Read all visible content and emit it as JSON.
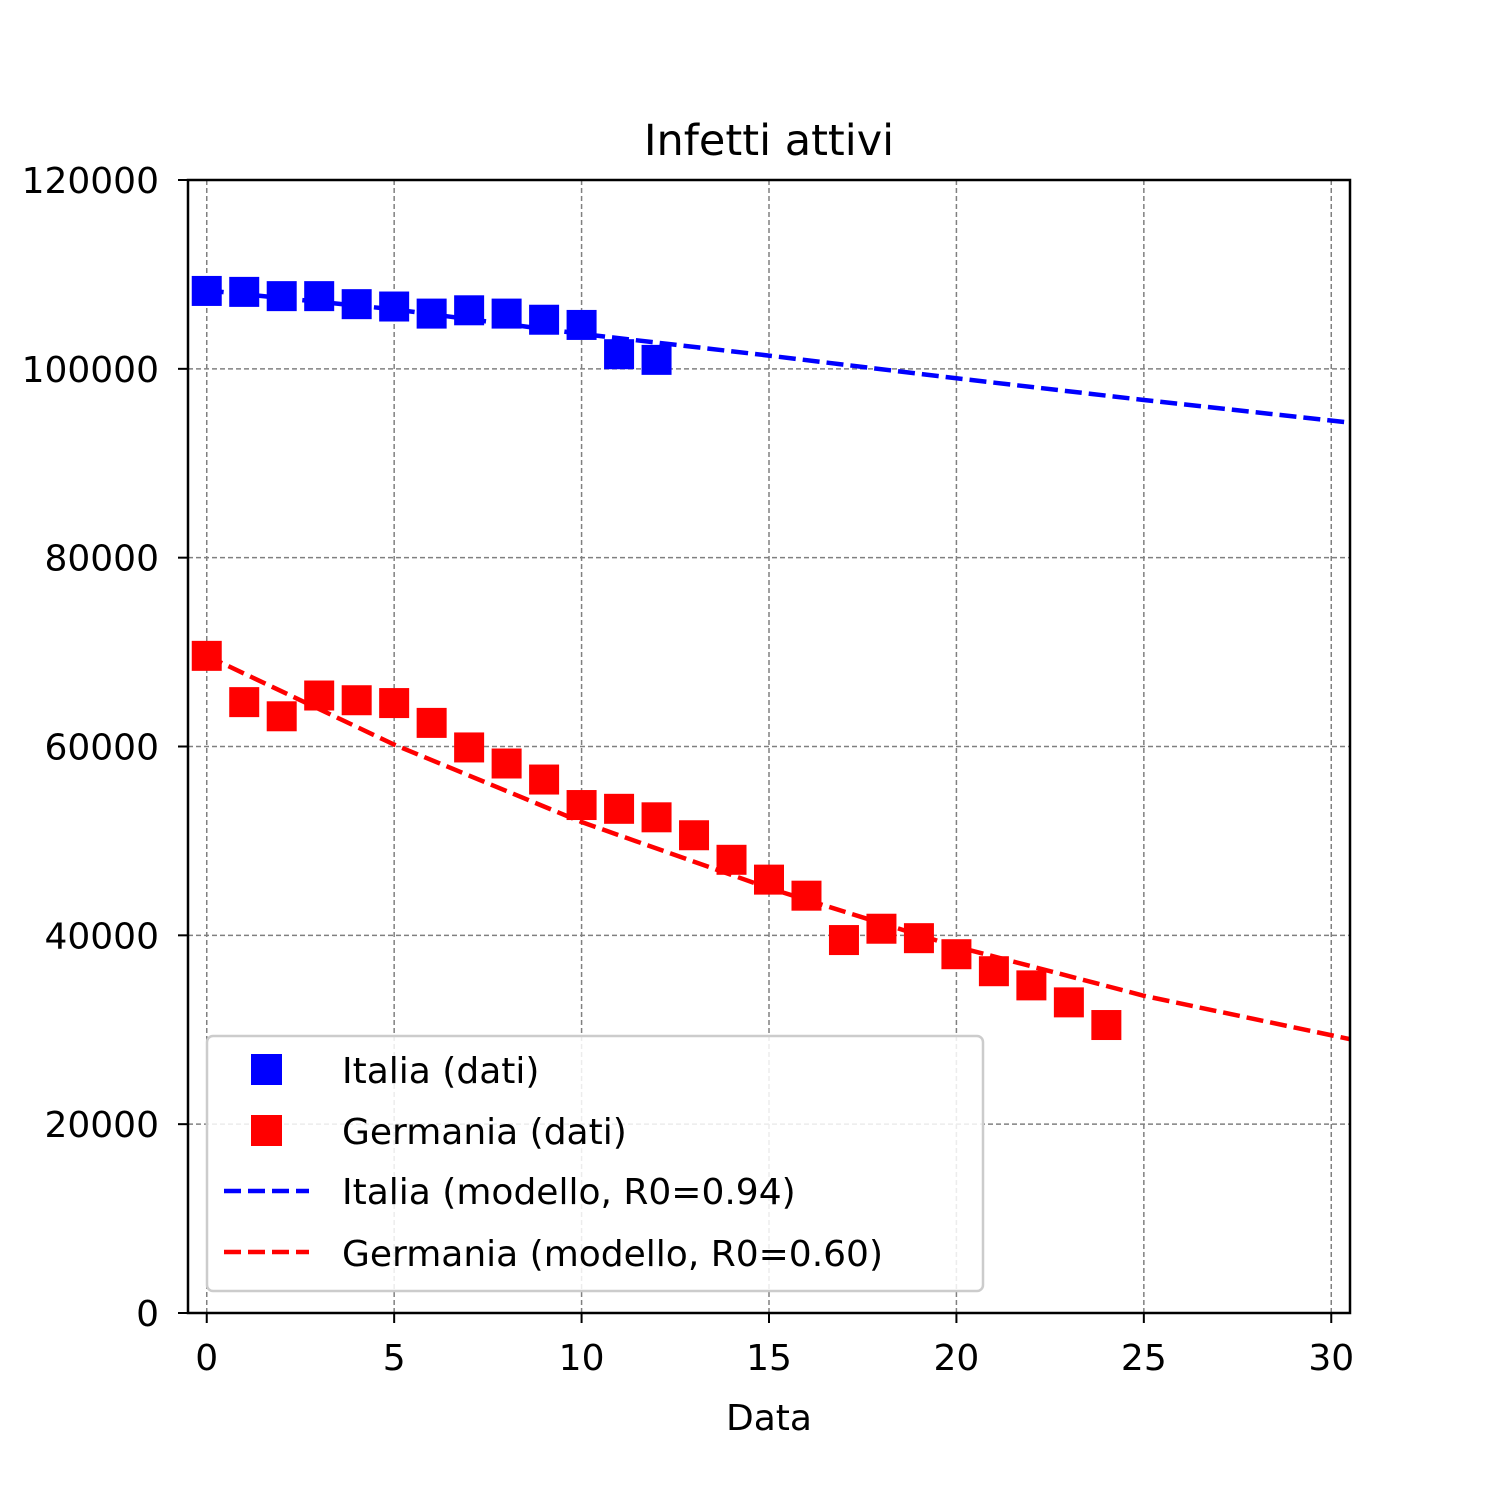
{
  "chart_data": {
    "type": "scatter",
    "title": "Infetti attivi",
    "xlabel": "Data",
    "ylabel": "",
    "xlim": [
      -0.5,
      30.5
    ],
    "ylim": [
      0,
      120000
    ],
    "xticks": [
      0,
      5,
      10,
      15,
      20,
      25,
      30
    ],
    "yticks": [
      0,
      20000,
      40000,
      60000,
      80000,
      100000,
      120000
    ],
    "xtick_labels": [
      "0",
      "5",
      "10",
      "15",
      "20",
      "25",
      "30"
    ],
    "ytick_labels": [
      "0",
      "20000",
      "40000",
      "60000",
      "80000",
      "100000",
      "120000"
    ],
    "grid": true,
    "legend_position": "lower-left",
    "series": [
      {
        "name": "Italia (dati)",
        "kind": "markers",
        "marker": "square",
        "color": "#0000ff",
        "x": [
          0,
          1,
          2,
          3,
          4,
          5,
          6,
          7,
          8,
          9,
          10,
          11,
          12
        ],
        "y": [
          108250,
          108150,
          107700,
          107700,
          106850,
          106600,
          105850,
          106200,
          105850,
          105200,
          104650,
          101550,
          100950
        ]
      },
      {
        "name": "Germania (dati)",
        "kind": "markers",
        "marker": "square",
        "color": "#ff0000",
        "x": [
          0,
          1,
          2,
          3,
          4,
          5,
          6,
          7,
          8,
          9,
          10,
          11,
          12,
          13,
          14,
          15,
          16,
          17,
          18,
          19,
          20,
          21,
          22,
          23,
          24
        ],
        "y": [
          69600,
          64700,
          63200,
          65400,
          64900,
          64600,
          62500,
          59900,
          58200,
          56500,
          53800,
          53400,
          52500,
          50600,
          48000,
          45900,
          44200,
          39500,
          40700,
          39700,
          38000,
          36200,
          34700,
          32900,
          30500
        ]
      },
      {
        "name": "Italia (modello, R0=0.94)",
        "kind": "line",
        "dash": "dashed",
        "color": "#0000ff",
        "x": [
          0,
          5,
          10,
          15,
          20,
          25,
          30.5
        ],
        "y": [
          108300,
          106300,
          103700,
          101400,
          99000,
          96700,
          94300
        ]
      },
      {
        "name": "Germania (modello, R0=0.60)",
        "kind": "line",
        "dash": "dashed",
        "color": "#ff0000",
        "x": [
          0,
          5,
          10,
          15,
          20,
          25,
          30.5
        ],
        "y": [
          69600,
          60200,
          52000,
          45000,
          38800,
          33600,
          29000
        ]
      }
    ]
  }
}
